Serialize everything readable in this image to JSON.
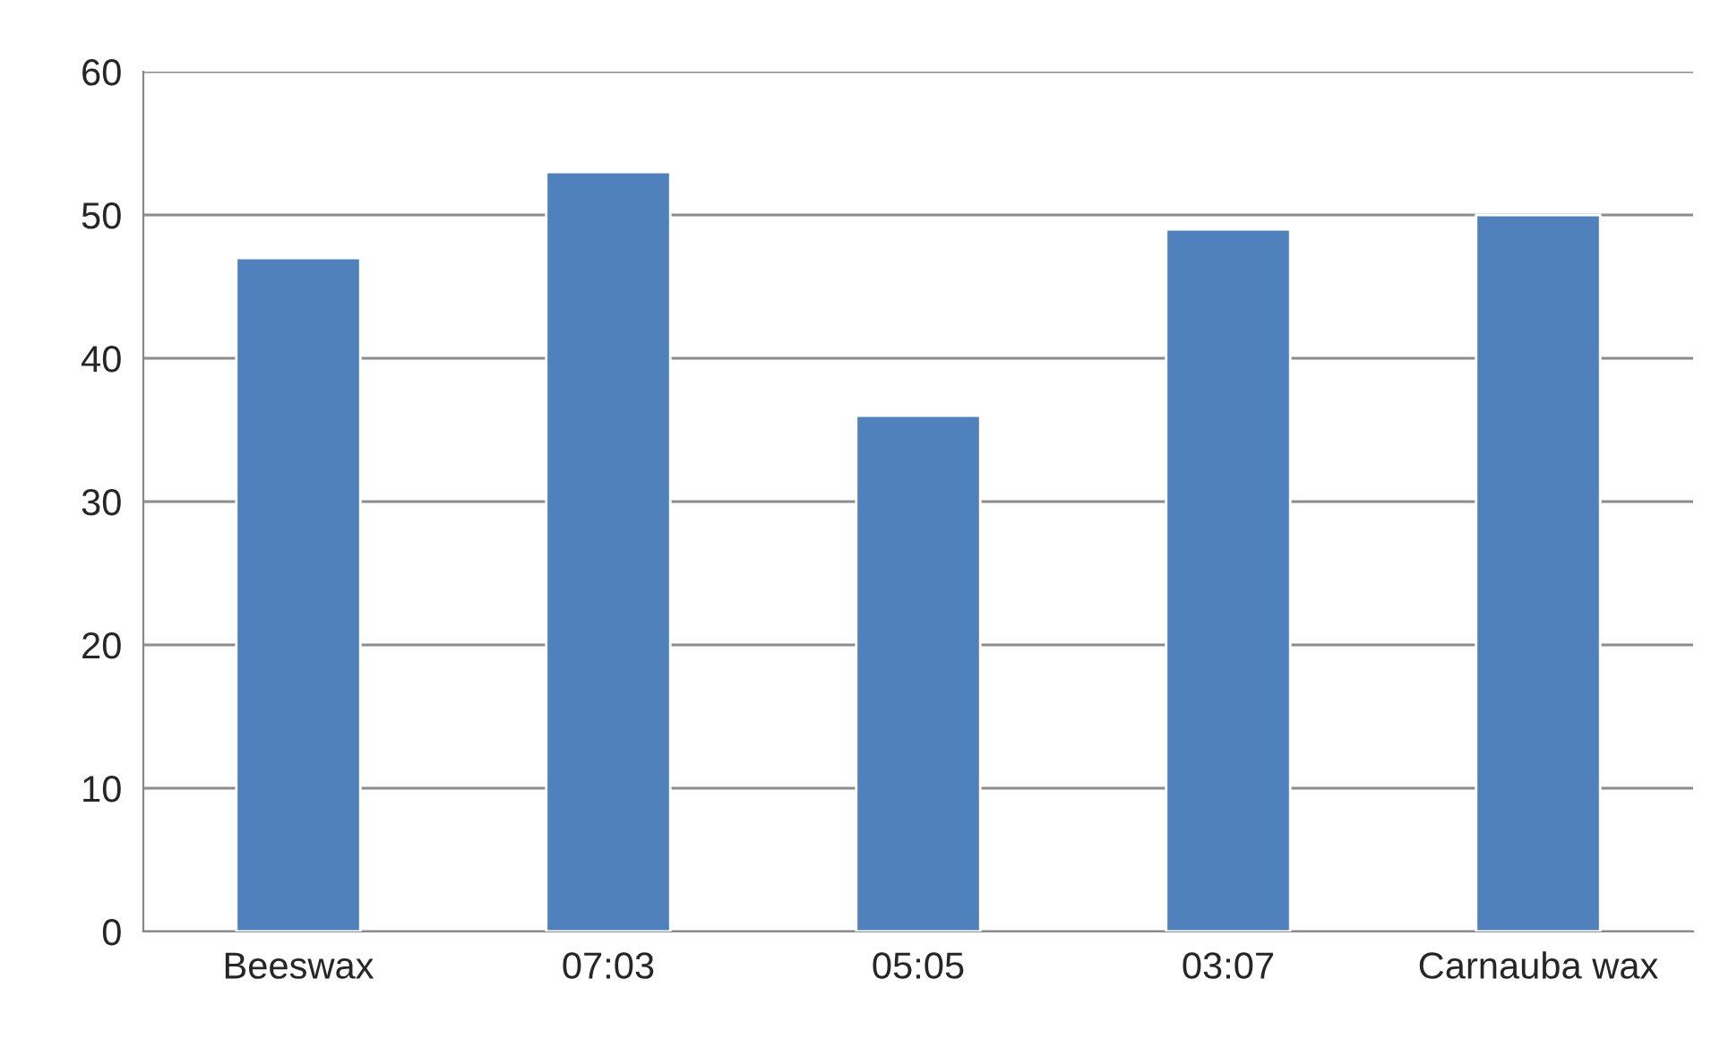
{
  "chart_data": {
    "type": "bar",
    "categories": [
      "Beeswax",
      "07:03",
      "05:05",
      "03:07",
      "Carnauba wax"
    ],
    "values": [
      47,
      53,
      36,
      49,
      50
    ],
    "color": "#4f81bd",
    "ylim": [
      0,
      60
    ],
    "yticks": [
      0,
      10,
      20,
      30,
      40,
      50,
      60
    ],
    "grid": "y"
  }
}
